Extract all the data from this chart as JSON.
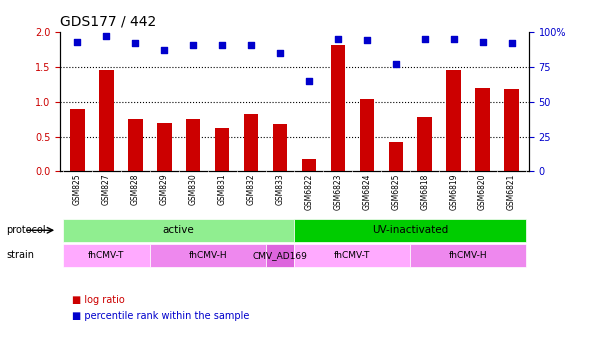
{
  "title": "GDS177 / 442",
  "samples": [
    "GSM825",
    "GSM827",
    "GSM828",
    "GSM829",
    "GSM830",
    "GSM831",
    "GSM832",
    "GSM833",
    "GSM6822",
    "GSM6823",
    "GSM6824",
    "GSM6825",
    "GSM6818",
    "GSM6819",
    "GSM6820",
    "GSM6821"
  ],
  "log_ratio": [
    0.9,
    1.46,
    0.75,
    0.7,
    0.75,
    0.63,
    0.82,
    0.68,
    0.18,
    1.82,
    1.04,
    0.42,
    0.78,
    1.45,
    1.2,
    1.19
  ],
  "percentile_rank": [
    93,
    97,
    92,
    87,
    91,
    91,
    91,
    85,
    65,
    95,
    94,
    77,
    95,
    95,
    93,
    92
  ],
  "bar_color": "#cc0000",
  "dot_color": "#0000cc",
  "ylim_left": [
    0,
    2
  ],
  "ylim_right": [
    0,
    100
  ],
  "yticks_left": [
    0,
    0.5,
    1.0,
    1.5,
    2.0
  ],
  "yticks_right": [
    0,
    25,
    50,
    75,
    100
  ],
  "ytick_labels_right": [
    "0",
    "25",
    "50",
    "75",
    "100%"
  ],
  "grid_lines": [
    0.5,
    1.0,
    1.5
  ],
  "protocol_labels": [
    {
      "text": "active",
      "start": 0,
      "end": 7,
      "color": "#90ee90"
    },
    {
      "text": "UV-inactivated",
      "start": 8,
      "end": 15,
      "color": "#00cc00"
    }
  ],
  "strain_labels": [
    {
      "text": "fhCMV-T",
      "start": 0,
      "end": 2,
      "color": "#ffaaff"
    },
    {
      "text": "fhCMV-H",
      "start": 3,
      "end": 6,
      "color": "#ee88ee"
    },
    {
      "text": "CMV_AD169",
      "start": 7,
      "end": 7,
      "color": "#dd66dd"
    },
    {
      "text": "fhCMV-T",
      "start": 8,
      "end": 11,
      "color": "#ffaaff"
    },
    {
      "text": "fhCMV-H",
      "start": 12,
      "end": 15,
      "color": "#ee88ee"
    }
  ],
  "legend_items": [
    {
      "label": "log ratio",
      "color": "#cc0000"
    },
    {
      "label": "percentile rank within the sample",
      "color": "#0000cc"
    }
  ],
  "bg_color": "#ffffff",
  "tick_label_area_color": "#dddddd"
}
